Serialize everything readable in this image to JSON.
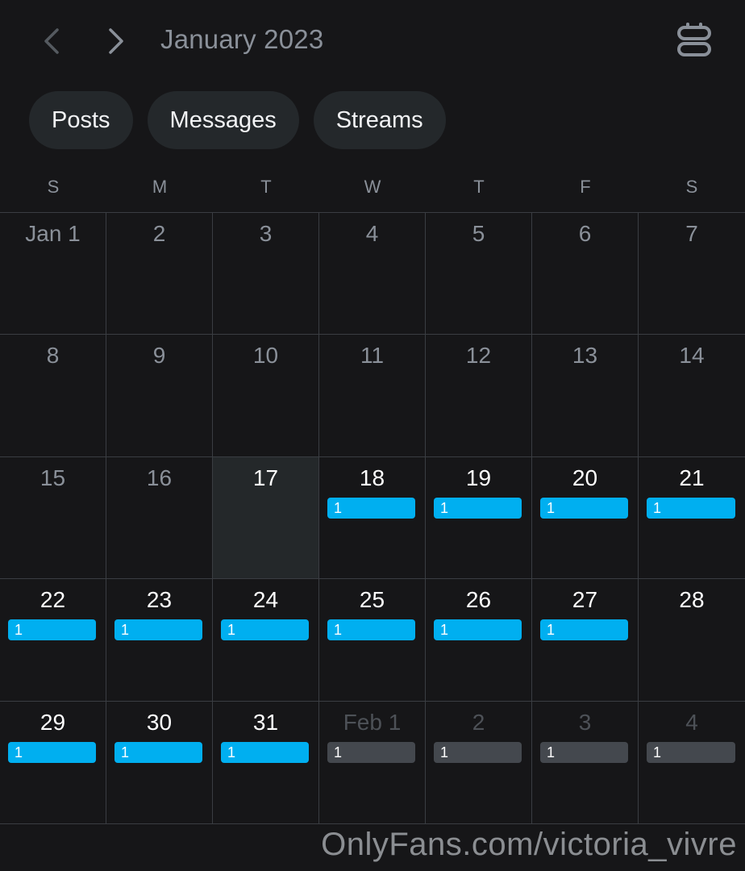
{
  "header": {
    "month_title": "January 2023",
    "prev_icon": "chevron-left-icon",
    "next_icon": "chevron-right-icon",
    "view_icon": "stacked-view-icon"
  },
  "filters": [
    "Posts",
    "Messages",
    "Streams"
  ],
  "weekdays": [
    "S",
    "M",
    "T",
    "W",
    "T",
    "F",
    "S"
  ],
  "colors": {
    "accent": "#00aff0",
    "muted_badge": "#44484e",
    "today_bg": "#24282a"
  },
  "days": [
    {
      "label": "Jan 1",
      "state": "past"
    },
    {
      "label": "2",
      "state": "past"
    },
    {
      "label": "3",
      "state": "past"
    },
    {
      "label": "4",
      "state": "past"
    },
    {
      "label": "5",
      "state": "past"
    },
    {
      "label": "6",
      "state": "past"
    },
    {
      "label": "7",
      "state": "past"
    },
    {
      "label": "8",
      "state": "past"
    },
    {
      "label": "9",
      "state": "past"
    },
    {
      "label": "10",
      "state": "past"
    },
    {
      "label": "11",
      "state": "past"
    },
    {
      "label": "12",
      "state": "past"
    },
    {
      "label": "13",
      "state": "past"
    },
    {
      "label": "14",
      "state": "past"
    },
    {
      "label": "15",
      "state": "past"
    },
    {
      "label": "16",
      "state": "past"
    },
    {
      "label": "17",
      "state": "today"
    },
    {
      "label": "18",
      "state": "active",
      "count": "1"
    },
    {
      "label": "19",
      "state": "active",
      "count": "1"
    },
    {
      "label": "20",
      "state": "active",
      "count": "1"
    },
    {
      "label": "21",
      "state": "active",
      "count": "1"
    },
    {
      "label": "22",
      "state": "active",
      "count": "1"
    },
    {
      "label": "23",
      "state": "active",
      "count": "1"
    },
    {
      "label": "24",
      "state": "active",
      "count": "1"
    },
    {
      "label": "25",
      "state": "active",
      "count": "1"
    },
    {
      "label": "26",
      "state": "active",
      "count": "1"
    },
    {
      "label": "27",
      "state": "active",
      "count": "1"
    },
    {
      "label": "28",
      "state": "active"
    },
    {
      "label": "29",
      "state": "active",
      "count": "1"
    },
    {
      "label": "30",
      "state": "active",
      "count": "1"
    },
    {
      "label": "31",
      "state": "active",
      "count": "1"
    },
    {
      "label": "Feb 1",
      "state": "other",
      "count": "1"
    },
    {
      "label": "2",
      "state": "other",
      "count": "1"
    },
    {
      "label": "3",
      "state": "other",
      "count": "1"
    },
    {
      "label": "4",
      "state": "other",
      "count": "1"
    }
  ],
  "watermark": "OnlyFans.com/victoria_vivre"
}
